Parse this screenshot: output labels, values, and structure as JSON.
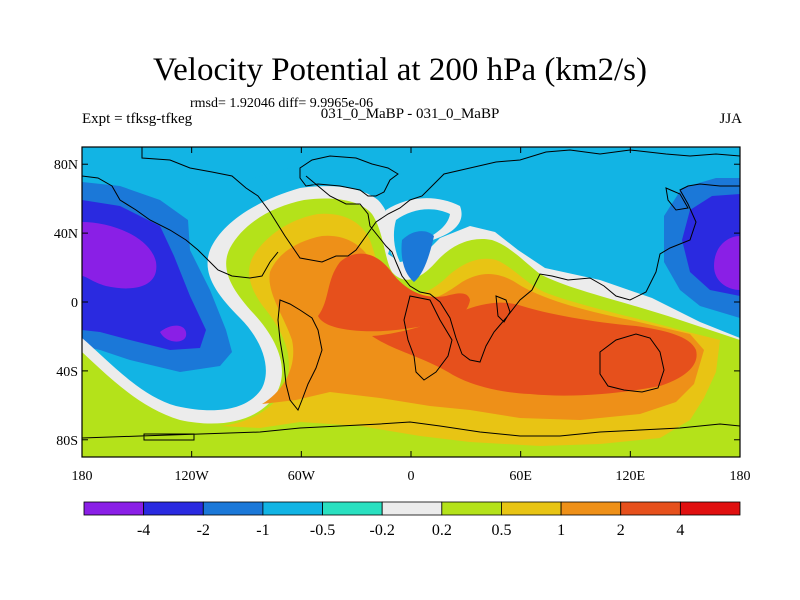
{
  "chart_data": {
    "type": "contour-map",
    "title": "Velocity Potential at 200 hPa (km2/s)",
    "stats_text": "rmsd= 1.92046 diff= 9.9965e-06",
    "left_label": "Expt = tfksg-tfkeg",
    "center_label": "031_0_MaBP - 031_0_MaBP",
    "right_label": "JJA",
    "x_ticks": [
      "180",
      "120W",
      "60W",
      "0",
      "60E",
      "120E",
      "180"
    ],
    "y_ticks": [
      "80N",
      "40N",
      "0",
      "40S",
      "80S"
    ],
    "lon_range": [
      -180,
      180
    ],
    "lat_range": [
      -90,
      90
    ],
    "colorbar": {
      "colors": [
        "#8a1fe6",
        "#2a2ae0",
        "#1b78d8",
        "#12b4e4",
        "#2ae0c0",
        "#ececec",
        "#b4e21a",
        "#e8c414",
        "#ee9018",
        "#e6501c",
        "#e01010"
      ],
      "labels": [
        "-4",
        "-2",
        "-1",
        "-0.5",
        "-0.2",
        "0.2",
        "0.5",
        "1",
        "2",
        "4"
      ]
    },
    "regions": [
      {
        "name": "band-cyan",
        "level": 3
      },
      {
        "name": "west-blue",
        "level": 2
      },
      {
        "name": "west-dark",
        "level": 1
      },
      {
        "name": "west-violet",
        "level": 0
      },
      {
        "name": "west-violet-small",
        "level": 0
      },
      {
        "name": "east-blue",
        "level": 2
      },
      {
        "name": "east-dark",
        "level": 1
      },
      {
        "name": "east-violet",
        "level": 0
      },
      {
        "name": "white-s-band",
        "level": 5
      },
      {
        "name": "warm-green",
        "level": 6
      },
      {
        "name": "warm-yellow",
        "level": 7
      },
      {
        "name": "warm-orange",
        "level": 8
      },
      {
        "name": "warm-red-west",
        "level": 9
      },
      {
        "name": "warm-red-east",
        "level": 9
      },
      {
        "name": "north-atlantic-white",
        "level": 5
      },
      {
        "name": "north-atlantic-cyan",
        "level": 3
      },
      {
        "name": "north-atlantic-blue",
        "level": 2
      }
    ]
  }
}
